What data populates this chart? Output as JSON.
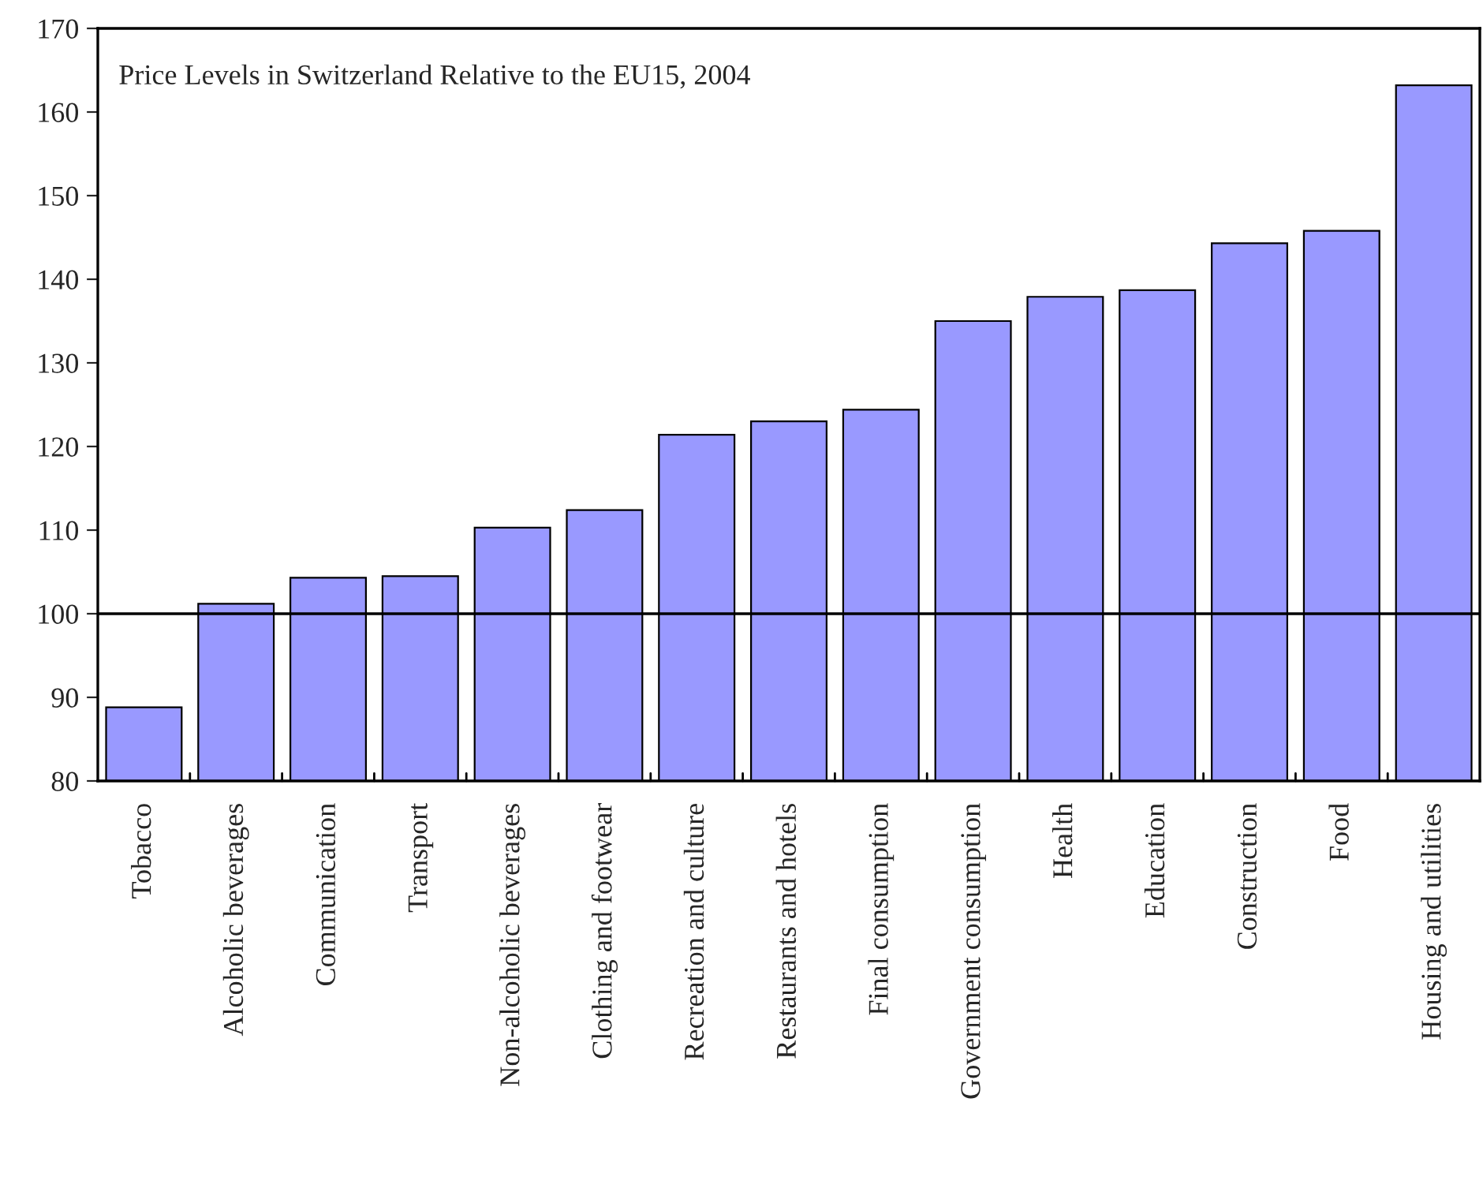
{
  "chart_data": {
    "type": "bar",
    "title": "Price Levels in Switzerland Relative to the EU15, 2004",
    "categories": [
      "Tobacco",
      "Alcoholic beverages",
      "Communication",
      "Transport",
      "Non-alcoholic beverages",
      "Clothing and footwear",
      "Recreation and culture",
      "Restaurants and hotels",
      "Final consumption",
      "Government consumption",
      "Health",
      "Education",
      "Construction",
      "Food",
      "Housing and utilities"
    ],
    "values": [
      88.8,
      101.2,
      104.3,
      104.5,
      110.3,
      112.4,
      121.4,
      123.0,
      124.4,
      135.0,
      137.9,
      138.7,
      144.3,
      145.8,
      163.2
    ],
    "color": "#9999ff",
    "ylim": [
      80,
      170
    ],
    "yticks": [
      80,
      90,
      100,
      110,
      120,
      130,
      140,
      150,
      160,
      170
    ],
    "ref_lines": [
      {
        "axis": "y",
        "value": 100,
        "color": "#000000"
      }
    ],
    "grid": false,
    "legend": false
  }
}
